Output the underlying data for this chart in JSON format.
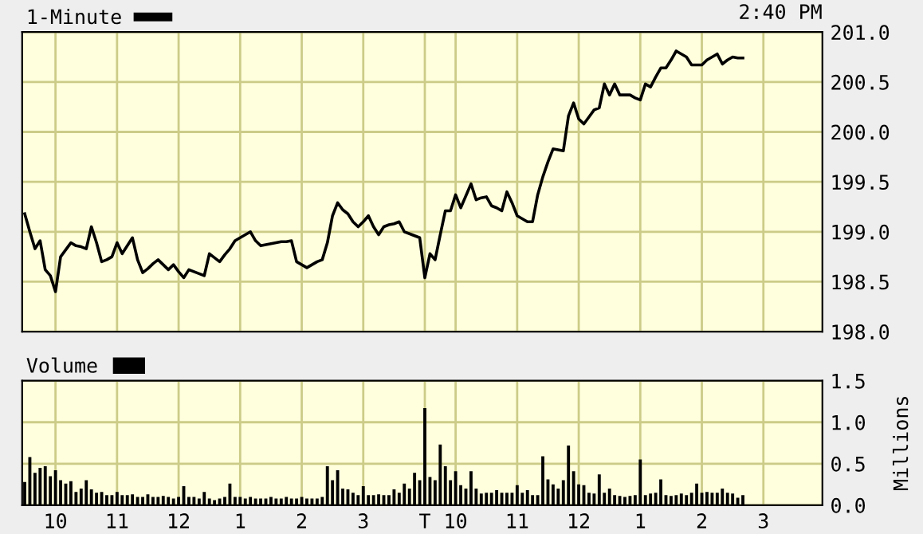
{
  "chart_data": [
    {
      "type": "line",
      "annotations": [
        "2:40 PM"
      ],
      "legend": "top left",
      "grid": true,
      "tick_labels": "y",
      "line_style": "solid",
      "marker": "none",
      "categories": [
        null,
        null,
        null,
        null,
        null,
        null,
        null,
        null,
        null,
        null,
        null,
        null,
        null,
        null,
        null,
        null,
        null,
        null,
        null,
        null,
        null,
        null,
        null,
        null,
        null,
        null,
        null,
        null,
        null,
        null,
        null,
        null,
        null,
        null,
        null,
        null,
        null,
        null,
        null,
        null,
        null,
        null,
        null,
        null,
        null,
        null,
        null,
        null,
        null,
        null,
        null,
        null,
        null,
        null,
        null,
        null,
        null,
        null,
        null,
        null,
        null,
        null,
        null,
        null,
        null,
        null,
        null,
        null,
        null,
        null,
        null,
        null,
        null,
        null,
        null,
        null,
        null,
        null,
        null,
        null,
        null,
        null,
        null,
        null,
        null,
        null,
        null,
        null,
        null,
        null,
        null,
        null,
        null,
        null,
        null,
        null,
        null,
        null,
        null,
        null,
        null,
        null,
        null,
        null,
        null,
        null,
        null,
        null,
        null,
        null,
        null,
        null,
        null,
        null,
        null,
        null,
        null,
        null,
        null,
        null,
        null,
        null,
        null,
        null,
        null,
        null,
        null,
        null,
        null,
        null,
        null,
        null,
        null,
        null,
        null,
        null,
        null,
        null,
        null,
        null,
        null,
        null,
        null,
        null,
        null,
        null,
        null,
        null,
        null,
        null,
        null,
        null,
        null,
        null,
        null,
        null
      ],
      "ylim": [
        198,
        201
      ],
      "yticks": [
        {
          "value": 198,
          "label": "198.0"
        },
        198.5,
        {
          "value": 199,
          "label": "199.0"
        },
        199.5,
        {
          "value": 200,
          "label": "200.0"
        },
        200.5,
        {
          "value": 201,
          "label": "201.0"
        }
      ],
      "series": [
        {
          "name": "1-Minute",
          "color": "#000000",
          "values": [
            199.18,
            199.0,
            198.83,
            198.91,
            198.62,
            198.56,
            198.4,
            198.75,
            198.82,
            198.89,
            198.86,
            198.85,
            198.83,
            199.05,
            198.89,
            198.7,
            198.72,
            198.75,
            198.89,
            198.78,
            198.86,
            198.94,
            198.72,
            198.59,
            198.63,
            198.68,
            198.72,
            198.67,
            198.62,
            198.67,
            198.6,
            198.54,
            198.62,
            198.6,
            198.58,
            198.56,
            198.78,
            198.74,
            198.7,
            198.77,
            198.83,
            198.91,
            198.94,
            198.97,
            199.0,
            198.91,
            198.86,
            198.87,
            198.88,
            198.89,
            198.9,
            198.9,
            198.91,
            198.7,
            198.67,
            198.64,
            198.67,
            198.7,
            198.72,
            198.89,
            199.16,
            199.29,
            199.22,
            199.18,
            199.1,
            199.05,
            199.1,
            199.16,
            199.05,
            198.97,
            199.05,
            199.07,
            199.08,
            199.1,
            199.0,
            198.98,
            198.96,
            198.94,
            198.54,
            198.78,
            198.72,
            198.97,
            199.21,
            199.21,
            199.37,
            199.24,
            199.36,
            199.48,
            199.32,
            199.34,
            199.35,
            199.26,
            199.24,
            199.21,
            199.4,
            199.29,
            199.16,
            199.13,
            199.1,
            199.1,
            199.37,
            199.55,
            199.7,
            199.83,
            199.82,
            199.81,
            200.16,
            200.29,
            200.13,
            200.08,
            200.15,
            200.22,
            200.24,
            200.48,
            200.37,
            200.48,
            200.37,
            200.37,
            200.37,
            200.34,
            200.32,
            200.48,
            200.45,
            200.55,
            200.64,
            200.64,
            200.72,
            200.81,
            200.78,
            200.75,
            200.67,
            200.67,
            200.67,
            200.72,
            200.75,
            200.78,
            200.68,
            200.72,
            200.75,
            200.74,
            200.74,
            null,
            null,
            null,
            null,
            null,
            null,
            null,
            null,
            null,
            null,
            null,
            null,
            null,
            null,
            null
          ]
        }
      ]
    },
    {
      "type": "bar",
      "ylabel": "Millions",
      "legend": "top left",
      "grid": true,
      "categories": [
        null,
        null,
        null,
        null,
        null,
        null,
        "10",
        null,
        null,
        null,
        null,
        null,
        null,
        null,
        null,
        null,
        null,
        null,
        "11",
        null,
        null,
        null,
        null,
        null,
        null,
        null,
        null,
        null,
        null,
        null,
        "12",
        null,
        null,
        null,
        null,
        null,
        null,
        null,
        null,
        null,
        null,
        null,
        "1",
        null,
        null,
        null,
        null,
        null,
        null,
        null,
        null,
        null,
        null,
        null,
        "2",
        null,
        null,
        null,
        null,
        null,
        null,
        null,
        null,
        null,
        null,
        null,
        "3",
        null,
        null,
        null,
        null,
        null,
        null,
        null,
        null,
        null,
        null,
        null,
        "T",
        null,
        null,
        null,
        null,
        null,
        "10",
        null,
        null,
        null,
        null,
        null,
        null,
        null,
        null,
        null,
        null,
        null,
        "11",
        null,
        null,
        null,
        null,
        null,
        null,
        null,
        null,
        null,
        null,
        null,
        "12",
        null,
        null,
        null,
        null,
        null,
        null,
        null,
        null,
        null,
        null,
        null,
        "1",
        null,
        null,
        null,
        null,
        null,
        null,
        null,
        null,
        null,
        null,
        null,
        "2",
        null,
        null,
        null,
        null,
        null,
        null,
        null,
        null,
        null,
        null,
        null,
        "3",
        null,
        null,
        null,
        null,
        null,
        null,
        null,
        null,
        null,
        null,
        null
      ],
      "ylim": [
        0,
        1.5
      ],
      "yticks": [
        {
          "value": 0,
          "label": "0.0"
        },
        0.5,
        {
          "value": 1,
          "label": "1.0"
        },
        1.5
      ],
      "series": [
        {
          "name": "Volume",
          "color": "#000000",
          "values": [
            0.28,
            0.58,
            0.39,
            0.45,
            0.47,
            0.35,
            0.42,
            0.3,
            0.26,
            0.29,
            0.16,
            0.2,
            0.3,
            0.19,
            0.15,
            0.16,
            0.12,
            0.12,
            0.16,
            0.12,
            0.12,
            0.13,
            0.1,
            0.1,
            0.13,
            0.1,
            0.1,
            0.11,
            0.1,
            0.08,
            0.1,
            0.23,
            0.1,
            0.1,
            0.08,
            0.16,
            0.08,
            0.06,
            0.08,
            0.1,
            0.26,
            0.1,
            0.1,
            0.08,
            0.1,
            0.08,
            0.08,
            0.08,
            0.1,
            0.08,
            0.08,
            0.1,
            0.08,
            0.08,
            0.1,
            0.08,
            0.08,
            0.08,
            0.1,
            0.47,
            0.3,
            0.42,
            0.2,
            0.19,
            0.15,
            0.12,
            0.23,
            0.12,
            0.12,
            0.13,
            0.12,
            0.12,
            0.19,
            0.15,
            0.26,
            0.2,
            0.39,
            0.3,
            1.17,
            0.34,
            0.3,
            0.73,
            0.47,
            0.3,
            0.41,
            0.24,
            0.2,
            0.41,
            0.2,
            0.14,
            0.15,
            0.15,
            0.18,
            0.15,
            0.15,
            0.15,
            0.24,
            0.15,
            0.18,
            0.12,
            0.12,
            0.59,
            0.31,
            0.25,
            0.2,
            0.3,
            0.72,
            0.41,
            0.25,
            0.24,
            0.15,
            0.14,
            0.37,
            0.15,
            0.2,
            0.12,
            0.11,
            0.1,
            0.11,
            0.12,
            0.55,
            0.12,
            0.14,
            0.15,
            0.31,
            0.12,
            0.11,
            0.12,
            0.14,
            0.12,
            0.15,
            0.26,
            0.15,
            0.16,
            0.15,
            0.15,
            0.2,
            0.15,
            0.14,
            0.09,
            0.12,
            null,
            null,
            null,
            null,
            null,
            null,
            null,
            null,
            null,
            null,
            null,
            null,
            null,
            null,
            null
          ]
        }
      ]
    }
  ]
}
